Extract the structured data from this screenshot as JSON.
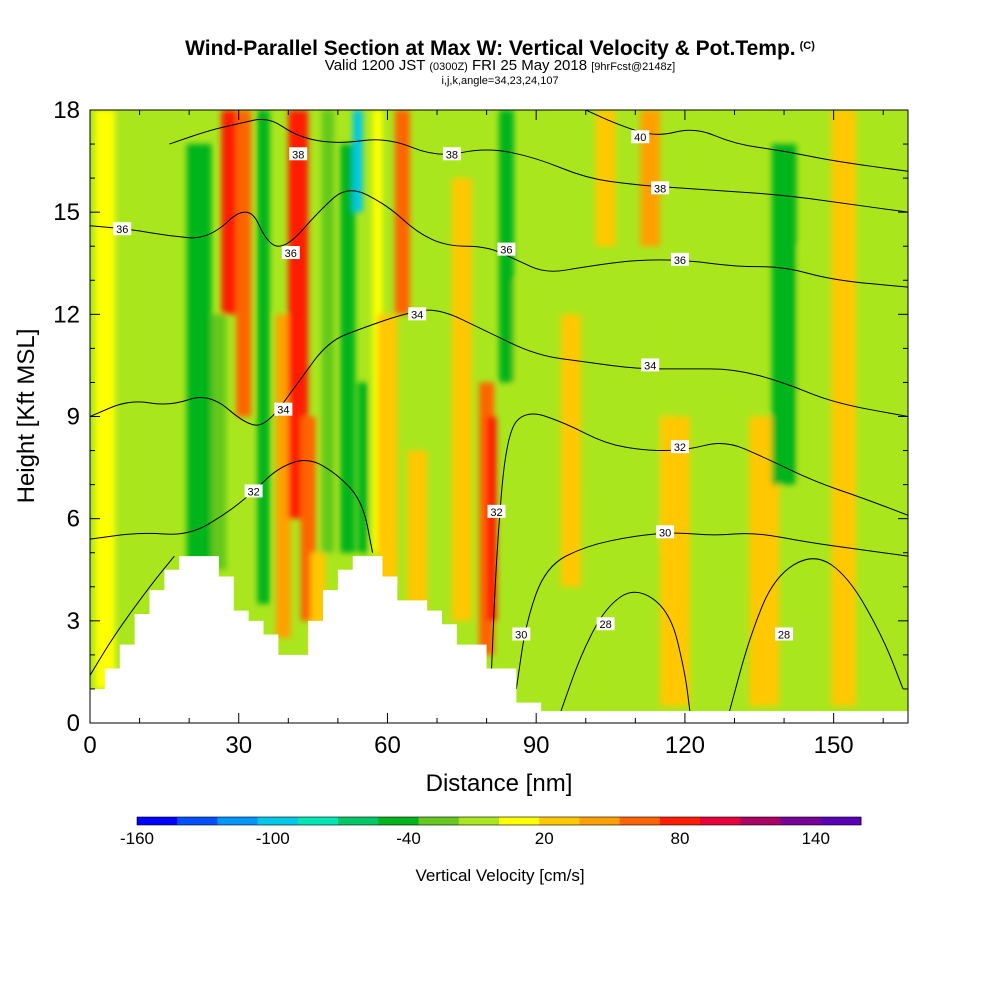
{
  "chart_data": {
    "type": "heatmap",
    "title": "Wind-Parallel Section at Max W: Vertical Velocity & Pot.Temp.",
    "title_mark": "(C)",
    "subtitle_parts": [
      "Valid 1200 JST",
      "(0300Z)",
      "FRI 25 May 2018",
      "[9hrFcst@2148z]"
    ],
    "subtitle2": "i,j,k,angle=34,23,24,107",
    "xlabel": "Distance [nm]",
    "ylabel": "Height [Kft MSL]",
    "xlim": [
      0,
      165
    ],
    "ylim": [
      0,
      18
    ],
    "x_ticks": [
      0,
      30,
      60,
      90,
      120,
      150
    ],
    "y_ticks": [
      0,
      3,
      6,
      9,
      12,
      15,
      18
    ],
    "colorbar": {
      "label": "Vertical Velocity [cm/s]",
      "tick_labels": [
        "-160",
        "-100",
        "-40",
        "20",
        "80",
        "140"
      ],
      "tick_values": [
        -160,
        -100,
        -40,
        20,
        80,
        140
      ],
      "range": [
        -160,
        160
      ],
      "colors": [
        "#0000ff",
        "#0050ff",
        "#0096ff",
        "#00c8e6",
        "#00e6b4",
        "#00c864",
        "#00b41e",
        "#64c81e",
        "#aae61e",
        "#ffff00",
        "#ffc800",
        "#ffa000",
        "#ff6400",
        "#ff1e00",
        "#e6003c",
        "#aa0064",
        "#780096",
        "#5a00b4"
      ]
    },
    "velocity_columns": [
      {
        "x": 3,
        "width": 4,
        "value": 10,
        "ymin": 1,
        "ymax": 18
      },
      {
        "x": 8,
        "width": 6,
        "value": -15,
        "ymin": 1.5,
        "ymax": 18
      },
      {
        "x": 22,
        "width": 5,
        "value": -45,
        "ymin": 4.5,
        "ymax": 17
      },
      {
        "x": 26,
        "width": 3,
        "value": -35,
        "ymin": 4.5,
        "ymax": 12
      },
      {
        "x": 28,
        "width": 3,
        "value": 85,
        "ymin": 12,
        "ymax": 18
      },
      {
        "x": 31,
        "width": 3,
        "value": 60,
        "ymin": 9,
        "ymax": 18
      },
      {
        "x": 35,
        "width": 2.5,
        "value": -45,
        "ymin": 3.5,
        "ymax": 18
      },
      {
        "x": 39,
        "width": 3,
        "value": 40,
        "ymin": 2.5,
        "ymax": 12
      },
      {
        "x": 42,
        "width": 4,
        "value": 75,
        "ymin": 6,
        "ymax": 18
      },
      {
        "x": 44,
        "width": 3,
        "value": 55,
        "ymin": 3,
        "ymax": 9
      },
      {
        "x": 46,
        "width": 3,
        "value": 35,
        "ymin": 2,
        "ymax": 5
      },
      {
        "x": 48,
        "width": 2.5,
        "value": -30,
        "ymin": 5,
        "ymax": 18
      },
      {
        "x": 52,
        "width": 3,
        "value": -50,
        "ymin": 5,
        "ymax": 17
      },
      {
        "x": 54,
        "width": 2,
        "value": -90,
        "ymin": 15,
        "ymax": 18
      },
      {
        "x": 55,
        "width": 2,
        "value": -40,
        "ymin": 5,
        "ymax": 10
      },
      {
        "x": 58,
        "width": 2,
        "value": 15,
        "ymin": 5,
        "ymax": 18
      },
      {
        "x": 60,
        "width": 4,
        "value": 25,
        "ymin": 4,
        "ymax": 12
      },
      {
        "x": 63,
        "width": 3,
        "value": 70,
        "ymin": 12,
        "ymax": 18
      },
      {
        "x": 66,
        "width": 4,
        "value": 35,
        "ymin": 3,
        "ymax": 8
      },
      {
        "x": 75,
        "width": 4,
        "value": 30,
        "ymin": 3,
        "ymax": 16
      },
      {
        "x": 80,
        "width": 3,
        "value": 60,
        "ymin": 2,
        "ymax": 10
      },
      {
        "x": 81,
        "width": 2,
        "value": 75,
        "ymin": 3,
        "ymax": 9
      },
      {
        "x": 84,
        "width": 3,
        "value": -40,
        "ymin": 10,
        "ymax": 18
      },
      {
        "x": 88,
        "width": 5,
        "value": -15,
        "ymin": 8,
        "ymax": 13
      },
      {
        "x": 97,
        "width": 4,
        "value": 20,
        "ymin": 4,
        "ymax": 12
      },
      {
        "x": 102,
        "width": 3,
        "value": -15,
        "ymin": 0.5,
        "ymax": 7
      },
      {
        "x": 104,
        "width": 4,
        "value": 20,
        "ymin": 14,
        "ymax": 18
      },
      {
        "x": 113,
        "width": 4,
        "value": 40,
        "ymin": 14,
        "ymax": 18
      },
      {
        "x": 116,
        "width": 4,
        "value": -15,
        "ymin": 5,
        "ymax": 12
      },
      {
        "x": 118,
        "width": 6,
        "value": 20,
        "ymin": 0.5,
        "ymax": 9
      },
      {
        "x": 122,
        "width": 4,
        "value": -15,
        "ymin": 15,
        "ymax": 18
      },
      {
        "x": 130,
        "width": 4,
        "value": -15,
        "ymin": 4,
        "ymax": 10
      },
      {
        "x": 136,
        "width": 6,
        "value": 20,
        "ymin": 0.5,
        "ymax": 9
      },
      {
        "x": 140,
        "width": 5,
        "value": -45,
        "ymin": 7,
        "ymax": 17
      },
      {
        "x": 145,
        "width": 4,
        "value": -15,
        "ymin": 3,
        "ymax": 14
      },
      {
        "x": 152,
        "width": 5,
        "value": 20,
        "ymin": 0.5,
        "ymax": 18
      },
      {
        "x": 159,
        "width": 6,
        "value": -10,
        "ymin": 5,
        "ymax": 18
      }
    ],
    "terrain": [
      [
        0,
        1
      ],
      [
        3,
        1
      ],
      [
        3,
        1.6
      ],
      [
        6,
        1.6
      ],
      [
        6,
        2.3
      ],
      [
        9,
        2.3
      ],
      [
        9,
        3.2
      ],
      [
        12,
        3.2
      ],
      [
        12,
        3.9
      ],
      [
        15,
        3.9
      ],
      [
        15,
        4.5
      ],
      [
        18,
        4.5
      ],
      [
        18,
        4.9
      ],
      [
        26,
        4.9
      ],
      [
        26,
        4.3
      ],
      [
        29,
        4.3
      ],
      [
        29,
        3.3
      ],
      [
        32,
        3.3
      ],
      [
        32,
        3.0
      ],
      [
        35,
        3.0
      ],
      [
        35,
        2.6
      ],
      [
        38,
        2.6
      ],
      [
        38,
        2.0
      ],
      [
        44,
        2.0
      ],
      [
        44,
        3.0
      ],
      [
        47,
        3.0
      ],
      [
        47,
        3.9
      ],
      [
        50,
        3.9
      ],
      [
        50,
        4.5
      ],
      [
        53,
        4.5
      ],
      [
        53,
        4.9
      ],
      [
        59,
        4.9
      ],
      [
        59,
        4.3
      ],
      [
        62,
        4.3
      ],
      [
        62,
        3.6
      ],
      [
        68,
        3.6
      ],
      [
        68,
        3.3
      ],
      [
        71,
        3.3
      ],
      [
        71,
        2.9
      ],
      [
        74,
        2.9
      ],
      [
        74,
        2.3
      ],
      [
        80,
        2.3
      ],
      [
        80,
        1.6
      ],
      [
        86,
        1.6
      ],
      [
        86,
        0.6
      ],
      [
        91,
        0.6
      ],
      [
        91,
        0.35
      ],
      [
        165,
        0.35
      ]
    ],
    "theta_contours": [
      {
        "value": 28,
        "label": "28",
        "points": [
          [
            95,
            0.35
          ],
          [
            99,
            2.0
          ],
          [
            104,
            3.4
          ],
          [
            110,
            4.0
          ],
          [
            117,
            3.3
          ],
          [
            120,
            1.5
          ],
          [
            121,
            0.35
          ]
        ]
      },
      {
        "value": 28,
        "label": "28",
        "points": [
          [
            129,
            0.35
          ],
          [
            133,
            2.5
          ],
          [
            138,
            4.3
          ],
          [
            146,
            5.0
          ],
          [
            153,
            4.3
          ],
          [
            160,
            2.5
          ],
          [
            164,
            1.0
          ]
        ]
      },
      {
        "value": 30,
        "label": "30",
        "points": [
          [
            0,
            1.4
          ],
          [
            5,
            2.6
          ],
          [
            12,
            4.0
          ],
          [
            17,
            4.9
          ]
        ]
      },
      {
        "value": 30,
        "label": "30",
        "points": [
          [
            86,
            1.0
          ],
          [
            88,
            3.0
          ],
          [
            92,
            4.6
          ],
          [
            100,
            5.2
          ],
          [
            110,
            5.5
          ],
          [
            118,
            5.6
          ],
          [
            126,
            5.5
          ],
          [
            134,
            5.6
          ],
          [
            145,
            5.3
          ],
          [
            155,
            5.1
          ],
          [
            165,
            4.9
          ]
        ]
      },
      {
        "value": 32,
        "label": "32",
        "points": [
          [
            0,
            5.4
          ],
          [
            10,
            5.6
          ],
          [
            20,
            5.5
          ],
          [
            28,
            6.2
          ],
          [
            33,
            6.8
          ],
          [
            38,
            7.5
          ],
          [
            44,
            7.8
          ],
          [
            50,
            7.3
          ],
          [
            55,
            6.5
          ],
          [
            57,
            5.0
          ]
        ]
      },
      {
        "value": 32,
        "label": "32",
        "points": [
          [
            81,
            1.6
          ],
          [
            82,
            5.0
          ],
          [
            84,
            8.5
          ],
          [
            88,
            9.2
          ],
          [
            96,
            8.8
          ],
          [
            104,
            8.2
          ],
          [
            112,
            8.0
          ],
          [
            120,
            8.0
          ],
          [
            128,
            8.3
          ],
          [
            136,
            7.8
          ],
          [
            146,
            7.1
          ],
          [
            156,
            6.6
          ],
          [
            165,
            6.1
          ]
        ]
      },
      {
        "value": 34,
        "label": "34",
        "points": [
          [
            0,
            9.0
          ],
          [
            8,
            9.5
          ],
          [
            16,
            9.3
          ],
          [
            24,
            9.7
          ],
          [
            32,
            8.7
          ],
          [
            36,
            8.8
          ],
          [
            42,
            10.0
          ],
          [
            48,
            11.2
          ],
          [
            55,
            11.6
          ],
          [
            63,
            12.0
          ],
          [
            70,
            12.2
          ],
          [
            80,
            11.5
          ],
          [
            90,
            10.8
          ],
          [
            100,
            10.6
          ],
          [
            110,
            10.4
          ],
          [
            120,
            10.4
          ],
          [
            130,
            10.4
          ],
          [
            140,
            10.0
          ],
          [
            150,
            9.4
          ],
          [
            165,
            9.0
          ]
        ]
      },
      {
        "value": 36,
        "label": "36",
        "points": [
          [
            0,
            14.6
          ],
          [
            8,
            14.5
          ],
          [
            16,
            14.3
          ],
          [
            24,
            14.2
          ],
          [
            32,
            15.3
          ],
          [
            36,
            14.0
          ],
          [
            40,
            14.0
          ],
          [
            46,
            15.0
          ],
          [
            52,
            15.8
          ],
          [
            60,
            15.2
          ],
          [
            66,
            14.4
          ],
          [
            72,
            14.0
          ],
          [
            80,
            14.0
          ],
          [
            86,
            13.6
          ],
          [
            92,
            13.2
          ],
          [
            100,
            13.4
          ],
          [
            110,
            13.6
          ],
          [
            120,
            13.6
          ],
          [
            130,
            13.4
          ],
          [
            140,
            13.4
          ],
          [
            150,
            13.0
          ],
          [
            165,
            12.8
          ]
        ]
      },
      {
        "value": 38,
        "label": "38",
        "points": [
          [
            16,
            17.0
          ],
          [
            24,
            17.4
          ],
          [
            30,
            17.6
          ],
          [
            36,
            17.8
          ],
          [
            42,
            17.2
          ],
          [
            50,
            17.0
          ],
          [
            60,
            17.2
          ],
          [
            70,
            16.6
          ],
          [
            80,
            16.9
          ],
          [
            90,
            16.6
          ],
          [
            100,
            16.0
          ],
          [
            110,
            15.8
          ],
          [
            120,
            15.7
          ],
          [
            130,
            15.6
          ],
          [
            140,
            15.5
          ],
          [
            150,
            15.3
          ],
          [
            165,
            15.0
          ]
        ]
      },
      {
        "value": 40,
        "label": "40",
        "points": [
          [
            100,
            18.0
          ],
          [
            106,
            17.6
          ],
          [
            114,
            17.2
          ],
          [
            122,
            17.5
          ],
          [
            130,
            17.0
          ],
          [
            140,
            16.8
          ],
          [
            150,
            16.5
          ],
          [
            165,
            16.2
          ]
        ]
      }
    ],
    "contour_labels": [
      {
        "text": "36",
        "x": 6.5,
        "y": 14.5
      },
      {
        "text": "38",
        "x": 42,
        "y": 16.7
      },
      {
        "text": "36",
        "x": 40.5,
        "y": 13.8
      },
      {
        "text": "34",
        "x": 39,
        "y": 9.2
      },
      {
        "text": "32",
        "x": 33,
        "y": 6.8
      },
      {
        "text": "38",
        "x": 73,
        "y": 16.7
      },
      {
        "text": "36",
        "x": 84,
        "y": 13.9
      },
      {
        "text": "34",
        "x": 66,
        "y": 12.0
      },
      {
        "text": "40",
        "x": 111,
        "y": 17.2
      },
      {
        "text": "38",
        "x": 115,
        "y": 15.7
      },
      {
        "text": "36",
        "x": 119,
        "y": 13.6
      },
      {
        "text": "34",
        "x": 113,
        "y": 10.5
      },
      {
        "text": "32",
        "x": 119,
        "y": 8.1
      },
      {
        "text": "30",
        "x": 116,
        "y": 5.6
      },
      {
        "text": "32",
        "x": 82,
        "y": 6.2
      },
      {
        "text": "30",
        "x": 87,
        "y": 2.6
      },
      {
        "text": "28",
        "x": 104,
        "y": 2.9
      },
      {
        "text": "28",
        "x": 140,
        "y": 2.6
      }
    ]
  }
}
